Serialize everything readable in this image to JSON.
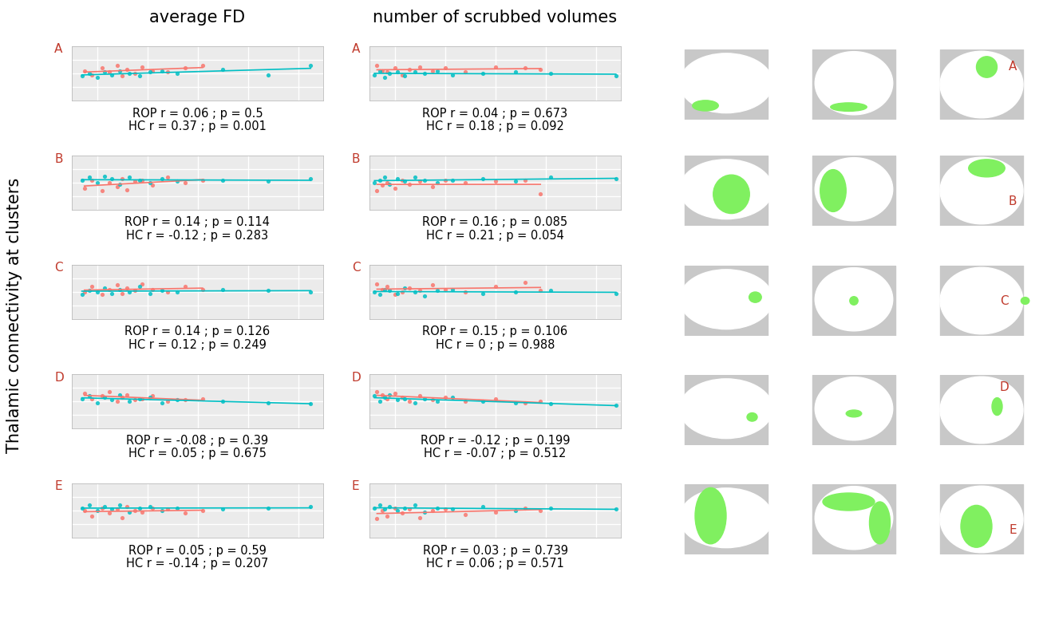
{
  "figure": {
    "column_titles": [
      "average FD",
      "number of scrubbed volumes"
    ],
    "ylabel": "Thalamic connectivity at clusters"
  },
  "chart_data": [
    {
      "type": "scatter",
      "label": "A",
      "column": 0,
      "row": 0,
      "annotation": [
        "ROP r = 0.06 ; p = 0.5",
        "HC r = 0.37 ; p = 0.001"
      ],
      "xlim": [
        0,
        1
      ],
      "ylim": [
        -1,
        1
      ],
      "xticks": [
        0.1,
        0.3,
        0.5,
        0.7,
        0.9
      ],
      "yticks": [
        -0.5,
        0,
        0.5
      ],
      "grid": true,
      "tick_labels": false,
      "series": [
        {
          "color": "#f8766d",
          "x": [
            0.05,
            0.08,
            0.12,
            0.15,
            0.18,
            0.2,
            0.22,
            0.25,
            0.28,
            0.32,
            0.38,
            0.45,
            0.52
          ],
          "values": [
            0.1,
            -0.05,
            0.2,
            0.05,
            0.3,
            -0.1,
            0.15,
            0.0,
            0.25,
            0.1,
            0.05,
            0.2,
            0.3
          ]
        },
        {
          "color": "#00bfc4",
          "x": [
            0.04,
            0.07,
            0.1,
            0.13,
            0.16,
            0.19,
            0.23,
            0.27,
            0.31,
            0.36,
            0.42,
            0.6,
            0.78,
            0.95
          ],
          "values": [
            -0.1,
            0.0,
            -0.15,
            0.05,
            -0.05,
            0.1,
            0.0,
            -0.1,
            0.05,
            0.1,
            0.0,
            0.15,
            -0.05,
            0.3
          ]
        }
      ]
    },
    {
      "type": "scatter",
      "label": "A",
      "column": 1,
      "row": 0,
      "annotation": [
        "ROP r = 0.04 ; p = 0.673",
        "HC r = 0.18 ; p = 0.092"
      ],
      "xlim": [
        0,
        1
      ],
      "ylim": [
        -1,
        1
      ],
      "xticks": [
        0.1,
        0.3,
        0.5,
        0.7,
        0.9
      ],
      "yticks": [
        -0.5,
        0,
        0.5
      ],
      "grid": true,
      "tick_labels": false,
      "series": [
        {
          "color": "#f8766d",
          "x": [
            0.03,
            0.05,
            0.07,
            0.1,
            0.13,
            0.16,
            0.2,
            0.25,
            0.3,
            0.38,
            0.5,
            0.62,
            0.68
          ],
          "values": [
            0.3,
            0.1,
            0.05,
            0.2,
            -0.05,
            0.15,
            0.25,
            0.1,
            0.2,
            0.05,
            0.25,
            0.2,
            0.15
          ]
        },
        {
          "color": "#00bfc4",
          "x": [
            0.02,
            0.04,
            0.06,
            0.08,
            0.11,
            0.14,
            0.18,
            0.22,
            0.27,
            0.33,
            0.45,
            0.58,
            0.72,
            0.98
          ],
          "values": [
            -0.05,
            0.1,
            -0.15,
            0.0,
            0.05,
            -0.1,
            0.05,
            0.0,
            0.1,
            -0.05,
            0.0,
            0.05,
            0.0,
            -0.1
          ]
        }
      ]
    },
    {
      "type": "scatter",
      "label": "B",
      "column": 0,
      "row": 1,
      "annotation": [
        "ROP r = 0.14 ; p = 0.114",
        "HC r = -0.12 ; p = 0.283"
      ],
      "xlim": [
        0,
        1
      ],
      "ylim": [
        -1,
        1
      ],
      "xticks": [
        0.1,
        0.3,
        0.5,
        0.7,
        0.9
      ],
      "yticks": [
        -0.5,
        0,
        0.5
      ],
      "grid": true,
      "tick_labels": false,
      "series": [
        {
          "color": "#f8766d",
          "x": [
            0.05,
            0.08,
            0.12,
            0.15,
            0.18,
            0.2,
            0.22,
            0.25,
            0.28,
            0.32,
            0.38,
            0.45,
            0.52
          ],
          "values": [
            -0.2,
            0.1,
            -0.3,
            0.0,
            -0.15,
            0.15,
            -0.25,
            0.05,
            0.1,
            -0.1,
            0.2,
            0.0,
            0.1
          ]
        },
        {
          "color": "#00bfc4",
          "x": [
            0.04,
            0.07,
            0.1,
            0.13,
            0.16,
            0.19,
            0.23,
            0.27,
            0.31,
            0.36,
            0.42,
            0.6,
            0.78,
            0.95
          ],
          "values": [
            0.1,
            0.2,
            0.0,
            0.25,
            0.15,
            -0.05,
            0.2,
            0.1,
            0.0,
            0.15,
            0.05,
            0.1,
            0.05,
            0.15
          ]
        }
      ]
    },
    {
      "type": "scatter",
      "label": "B",
      "column": 1,
      "row": 1,
      "annotation": [
        "ROP r = 0.16 ; p = 0.085",
        "HC r = 0.21 ; p = 0.054"
      ],
      "xlim": [
        0,
        1
      ],
      "ylim": [
        -1,
        1
      ],
      "xticks": [
        0.1,
        0.3,
        0.5,
        0.7,
        0.9
      ],
      "yticks": [
        -0.5,
        0,
        0.5
      ],
      "grid": true,
      "tick_labels": false,
      "series": [
        {
          "color": "#f8766d",
          "x": [
            0.03,
            0.05,
            0.07,
            0.1,
            0.13,
            0.16,
            0.2,
            0.25,
            0.3,
            0.38,
            0.5,
            0.62,
            0.68
          ],
          "values": [
            -0.3,
            -0.1,
            0.0,
            -0.2,
            0.1,
            -0.05,
            0.05,
            -0.15,
            0.1,
            0.0,
            0.05,
            0.1,
            -0.4
          ]
        },
        {
          "color": "#00bfc4",
          "x": [
            0.02,
            0.04,
            0.06,
            0.08,
            0.11,
            0.14,
            0.18,
            0.22,
            0.27,
            0.33,
            0.45,
            0.58,
            0.72,
            0.98
          ],
          "values": [
            0.0,
            0.1,
            0.2,
            -0.05,
            0.15,
            0.05,
            0.2,
            0.1,
            0.0,
            0.1,
            0.15,
            0.05,
            0.2,
            0.15
          ]
        }
      ]
    },
    {
      "type": "scatter",
      "label": "C",
      "column": 0,
      "row": 2,
      "annotation": [
        "ROP r = 0.14 ; p = 0.126",
        "HC r = 0.12 ; p = 0.249"
      ],
      "xlim": [
        0,
        1
      ],
      "ylim": [
        -1,
        1
      ],
      "xticks": [
        0.1,
        0.3,
        0.5,
        0.7,
        0.9
      ],
      "yticks": [
        -0.5,
        0,
        0.5
      ],
      "grid": true,
      "tick_labels": false,
      "series": [
        {
          "color": "#f8766d",
          "x": [
            0.05,
            0.08,
            0.12,
            0.15,
            0.18,
            0.2,
            0.22,
            0.25,
            0.28,
            0.32,
            0.38,
            0.45,
            0.52
          ],
          "values": [
            0.0,
            0.2,
            -0.1,
            0.1,
            0.25,
            -0.05,
            0.15,
            0.05,
            0.3,
            0.1,
            0.0,
            0.2,
            0.1
          ]
        },
        {
          "color": "#00bfc4",
          "x": [
            0.04,
            0.07,
            0.1,
            0.13,
            0.16,
            0.19,
            0.23,
            0.27,
            0.31,
            0.36,
            0.42,
            0.6,
            0.78,
            0.95
          ],
          "values": [
            -0.1,
            0.05,
            0.0,
            0.15,
            -0.05,
            0.1,
            0.0,
            0.2,
            -0.05,
            0.05,
            0.0,
            0.1,
            0.05,
            0.0
          ]
        }
      ]
    },
    {
      "type": "scatter",
      "label": "C",
      "column": 1,
      "row": 2,
      "annotation": [
        "ROP r = 0.15 ; p = 0.106",
        "HC r = 0 ; p = 0.988"
      ],
      "xlim": [
        0,
        1
      ],
      "ylim": [
        -1,
        1
      ],
      "xticks": [
        0.1,
        0.3,
        0.5,
        0.7,
        0.9
      ],
      "yticks": [
        -0.5,
        0,
        0.5
      ],
      "grid": true,
      "tick_labels": false,
      "series": [
        {
          "color": "#f8766d",
          "x": [
            0.03,
            0.05,
            0.07,
            0.1,
            0.13,
            0.16,
            0.2,
            0.25,
            0.3,
            0.38,
            0.5,
            0.62,
            0.68
          ],
          "values": [
            0.3,
            0.1,
            0.2,
            -0.1,
            0.0,
            0.15,
            0.05,
            0.25,
            0.1,
            0.0,
            0.2,
            0.35,
            0.05
          ]
        },
        {
          "color": "#00bfc4",
          "x": [
            0.02,
            0.04,
            0.06,
            0.08,
            0.11,
            0.14,
            0.18,
            0.22,
            0.27,
            0.33,
            0.45,
            0.58,
            0.72,
            0.98
          ],
          "values": [
            0.0,
            -0.1,
            0.1,
            0.05,
            -0.05,
            0.15,
            0.0,
            -0.15,
            0.05,
            0.1,
            -0.05,
            0.0,
            0.05,
            -0.05
          ]
        }
      ]
    },
    {
      "type": "scatter",
      "label": "D",
      "column": 0,
      "row": 3,
      "annotation": [
        "ROP r = -0.08 ; p = 0.39",
        "HC r = 0.05 ; p = 0.675"
      ],
      "xlim": [
        0,
        1
      ],
      "ylim": [
        -1,
        1
      ],
      "xticks": [
        0.1,
        0.3,
        0.5,
        0.7,
        0.9
      ],
      "yticks": [
        -0.5,
        0,
        0.5
      ],
      "grid": true,
      "tick_labels": false,
      "series": [
        {
          "color": "#f8766d",
          "x": [
            0.05,
            0.08,
            0.12,
            0.15,
            0.18,
            0.2,
            0.22,
            0.25,
            0.28,
            0.32,
            0.38,
            0.45,
            0.52
          ],
          "values": [
            0.3,
            0.1,
            0.2,
            0.35,
            0.0,
            0.15,
            0.25,
            0.05,
            0.1,
            0.2,
            0.0,
            0.05,
            0.1
          ]
        },
        {
          "color": "#00bfc4",
          "x": [
            0.04,
            0.07,
            0.1,
            0.13,
            0.16,
            0.19,
            0.23,
            0.27,
            0.31,
            0.36,
            0.42,
            0.6,
            0.78,
            0.95
          ],
          "values": [
            0.1,
            0.2,
            -0.05,
            0.15,
            0.05,
            0.25,
            0.0,
            0.1,
            0.15,
            -0.05,
            0.05,
            0.0,
            -0.05,
            -0.1
          ]
        }
      ]
    },
    {
      "type": "scatter",
      "label": "D",
      "column": 1,
      "row": 3,
      "annotation": [
        "ROP r = -0.12 ; p = 0.199",
        "HC r = -0.07 ; p = 0.512"
      ],
      "xlim": [
        0,
        1
      ],
      "ylim": [
        -1,
        1
      ],
      "xticks": [
        0.1,
        0.3,
        0.5,
        0.7,
        0.9
      ],
      "yticks": [
        -0.5,
        0,
        0.5
      ],
      "grid": true,
      "tick_labels": false,
      "series": [
        {
          "color": "#f8766d",
          "x": [
            0.03,
            0.05,
            0.07,
            0.1,
            0.13,
            0.16,
            0.2,
            0.25,
            0.3,
            0.38,
            0.5,
            0.62,
            0.68
          ],
          "values": [
            0.35,
            0.25,
            0.1,
            0.3,
            0.15,
            0.0,
            0.2,
            0.05,
            0.15,
            0.0,
            0.1,
            -0.05,
            0.0
          ]
        },
        {
          "color": "#00bfc4",
          "x": [
            0.02,
            0.04,
            0.06,
            0.08,
            0.11,
            0.14,
            0.18,
            0.22,
            0.27,
            0.33,
            0.45,
            0.58,
            0.72,
            0.98
          ],
          "values": [
            0.2,
            0.0,
            0.15,
            0.25,
            0.05,
            0.1,
            -0.05,
            0.1,
            0.0,
            0.15,
            0.0,
            -0.05,
            -0.1,
            -0.15
          ]
        }
      ]
    },
    {
      "type": "scatter",
      "label": "E",
      "column": 0,
      "row": 4,
      "annotation": [
        "ROP r = 0.05 ; p = 0.59",
        "HC r = -0.14 ; p = 0.207"
      ],
      "xlim": [
        0,
        1
      ],
      "ylim": [
        -1,
        1
      ],
      "xticks": [
        0.1,
        0.3,
        0.5,
        0.7,
        0.9
      ],
      "yticks": [
        -0.5,
        0,
        0.5
      ],
      "grid": true,
      "tick_labels": false,
      "series": [
        {
          "color": "#f8766d",
          "x": [
            0.05,
            0.08,
            0.12,
            0.15,
            0.18,
            0.2,
            0.22,
            0.25,
            0.28,
            0.32,
            0.38,
            0.45,
            0.52
          ],
          "values": [
            0.0,
            -0.2,
            0.1,
            -0.1,
            0.05,
            -0.25,
            0.15,
            0.0,
            -0.05,
            0.1,
            0.05,
            -0.1,
            0.0
          ]
        },
        {
          "color": "#00bfc4",
          "x": [
            0.04,
            0.07,
            0.1,
            0.13,
            0.16,
            0.19,
            0.23,
            0.27,
            0.31,
            0.36,
            0.42,
            0.6,
            0.78,
            0.95
          ],
          "values": [
            0.1,
            0.2,
            0.0,
            0.15,
            0.05,
            0.2,
            -0.05,
            0.1,
            0.15,
            0.0,
            0.1,
            0.05,
            0.1,
            0.15
          ]
        }
      ]
    },
    {
      "type": "scatter",
      "label": "E",
      "column": 1,
      "row": 4,
      "annotation": [
        "ROP r = 0.03 ; p = 0.739",
        "HC r = 0.06 ; p = 0.571"
      ],
      "xlim": [
        0,
        1
      ],
      "ylim": [
        -1,
        1
      ],
      "xticks": [
        0.1,
        0.3,
        0.5,
        0.7,
        0.9
      ],
      "yticks": [
        -0.5,
        0,
        0.5
      ],
      "grid": true,
      "tick_labels": false,
      "series": [
        {
          "color": "#f8766d",
          "x": [
            0.03,
            0.05,
            0.07,
            0.1,
            0.13,
            0.16,
            0.2,
            0.25,
            0.3,
            0.38,
            0.5,
            0.62,
            0.68
          ],
          "values": [
            -0.3,
            0.0,
            -0.2,
            0.1,
            -0.1,
            0.05,
            -0.25,
            0.0,
            0.05,
            -0.15,
            -0.05,
            0.1,
            0.0
          ]
        },
        {
          "color": "#00bfc4",
          "x": [
            0.02,
            0.04,
            0.06,
            0.08,
            0.11,
            0.14,
            0.18,
            0.22,
            0.27,
            0.33,
            0.45,
            0.58,
            0.72,
            0.98
          ],
          "values": [
            0.1,
            0.2,
            0.05,
            0.15,
            0.0,
            0.1,
            0.2,
            -0.05,
            0.1,
            0.05,
            0.15,
            0.0,
            0.1,
            0.05
          ]
        }
      ]
    }
  ]
}
